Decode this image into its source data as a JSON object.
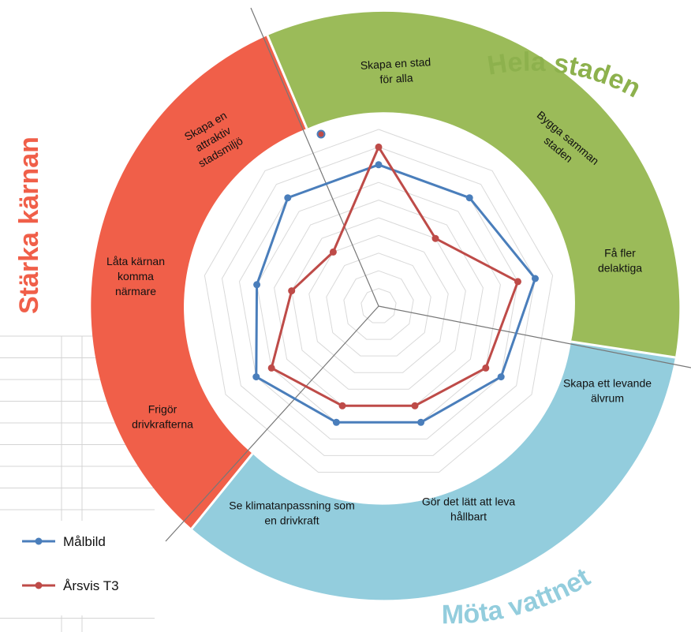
{
  "chart_data": {
    "type": "radar",
    "axes": [
      "Skapa en stad för alla",
      "Bygga samman staden",
      "Få fler delaktiga",
      "Skapa ett levande älvrum",
      "Gör det lätt att leva hållbart",
      "Se klimatanpassning som en drivkraft",
      "Frigör drivkrafterna",
      "Låta kärnan komma närmare",
      "Skapa en attraktiv stadsmiljö"
    ],
    "axis_label_lines": [
      [
        "Skapa en stad",
        "för alla"
      ],
      [
        "Bygga samman",
        "staden"
      ],
      [
        "Få fler",
        "delaktiga"
      ],
      [
        "Skapa ett levande",
        "älvrum"
      ],
      [
        "Gör det lätt att leva",
        "hållbart"
      ],
      [
        "Se klimatanpassning som",
        "en drivkraft"
      ],
      [
        "Frigör",
        "drivkrafterna"
      ],
      [
        "Låta kärnan",
        "komma",
        "närmare"
      ],
      [
        "Skapa en",
        "attraktiv",
        "stadsmiljö"
      ]
    ],
    "rmax": 10,
    "grid": true,
    "legend_position": "bottom-left",
    "series": [
      {
        "name": "Målbild",
        "color": "#4a7ebb",
        "values": [
          8,
          8,
          9,
          8,
          7,
          7,
          8,
          7,
          8
        ]
      },
      {
        "name": "Årsvis T3",
        "color": "#be4b48",
        "values": [
          9,
          5,
          8,
          7,
          6,
          6,
          7,
          5,
          4
        ]
      }
    ],
    "bands": [
      {
        "title": "Hela staden",
        "color": "#9bbb59",
        "title_color": "#8db14d"
      },
      {
        "title": "Möta vattnet",
        "color": "#93cddd",
        "title_color": "#93cddd"
      },
      {
        "title": "Stärka kärnan",
        "color": "#f05f49",
        "title_color": "#f05f49"
      }
    ]
  }
}
